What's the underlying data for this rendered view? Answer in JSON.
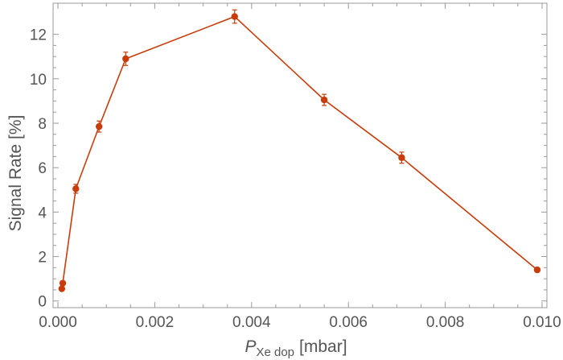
{
  "chart_data": {
    "type": "line",
    "title": "",
    "xlabel": {
      "symbol": "P",
      "subscript": "Xe dop",
      "unit": "[mbar]"
    },
    "ylabel": "Signal Rate [%]",
    "xlim": [
      -0.0001,
      0.0101
    ],
    "ylim": [
      -0.3,
      13.4
    ],
    "xticks": [
      0.0,
      0.002,
      0.004,
      0.006,
      0.008,
      0.01
    ],
    "xtick_labels": [
      "0.000",
      "0.002",
      "0.004",
      "0.006",
      "0.008",
      "0.010"
    ],
    "yticks": [
      0,
      2,
      4,
      6,
      8,
      10,
      12
    ],
    "ytick_labels": [
      "0",
      "2",
      "4",
      "6",
      "8",
      "10",
      "12"
    ],
    "grid": false,
    "color": "#c83c0a",
    "series": [
      {
        "x": [
          8e-05,
          0.0001,
          0.00037,
          0.00085,
          0.0014,
          0.00365,
          0.0055,
          0.0071,
          0.0099
        ],
        "y": [
          0.55,
          0.8,
          5.05,
          7.85,
          10.9,
          12.8,
          9.05,
          6.45,
          1.4
        ],
        "err": [
          0.05,
          0.05,
          0.2,
          0.25,
          0.3,
          0.3,
          0.25,
          0.25,
          0.07
        ]
      }
    ]
  }
}
